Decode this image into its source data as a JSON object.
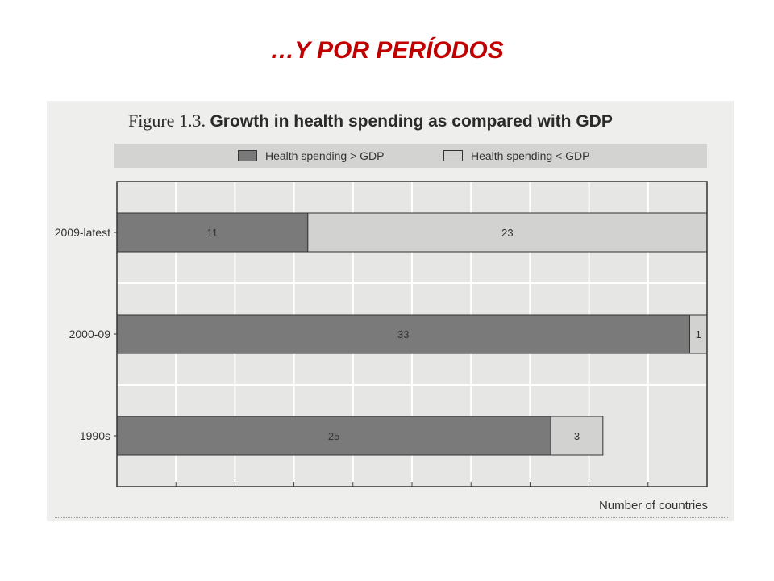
{
  "slide": {
    "title": "…Y POR PERÍODOS"
  },
  "figure": {
    "label": "Figure 1.3.",
    "title": "Growth in health spending as compared with GDP"
  },
  "chart_data": {
    "type": "bar",
    "orientation": "horizontal",
    "stacked": true,
    "categories": [
      "2009-latest",
      "2000-09",
      "1990s"
    ],
    "series": [
      {
        "name": "Health spending > GDP",
        "values": [
          11,
          33,
          25
        ],
        "color": "#7a7a7a"
      },
      {
        "name": "Health spending < GDP",
        "values": [
          23,
          1,
          3
        ],
        "color": "#d2d2d0"
      }
    ],
    "xlabel": "Number of countries",
    "ylabel": "",
    "xlim": [
      0,
      34
    ],
    "grid": true,
    "legend_position": "top"
  }
}
